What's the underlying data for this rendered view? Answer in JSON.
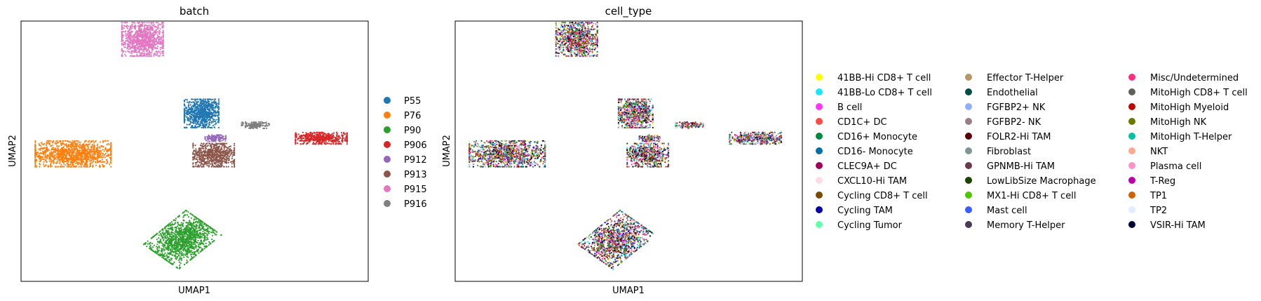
{
  "chart_data": [
    {
      "type": "scatter",
      "title": "batch",
      "xlabel": "UMAP1",
      "ylabel": "UMAP2",
      "grid": false,
      "legend_placement": "right",
      "xlim": [
        -10,
        10
      ],
      "ylim": [
        -10,
        10
      ],
      "series": [
        {
          "name": "P55",
          "color": "#1f77b4",
          "cluster": {
            "center": [
              0.4,
              2.9
            ],
            "spread": [
              1.0,
              1.1
            ],
            "shape": "blob",
            "count": 800
          }
        },
        {
          "name": "P76",
          "color": "#ff7f0e",
          "cluster": {
            "center": [
              -7.0,
              -0.2
            ],
            "spread": [
              2.2,
              1.0
            ],
            "shape": "blob",
            "count": 1200
          }
        },
        {
          "name": "P90",
          "color": "#2ca02c",
          "cluster": {
            "center": [
              -0.7,
              -6.8
            ],
            "spread": [
              1.4,
              1.8
            ],
            "shape": "tilted",
            "count": 1300
          }
        },
        {
          "name": "P906",
          "color": "#d62728",
          "cluster": {
            "center": [
              7.3,
              1.0
            ],
            "spread": [
              1.5,
              0.45
            ],
            "shape": "blob",
            "count": 500
          }
        },
        {
          "name": "P912",
          "color": "#9467bd",
          "cluster": {
            "center": [
              1.2,
              1.0
            ],
            "spread": [
              0.6,
              0.25
            ],
            "shape": "blob",
            "count": 120
          }
        },
        {
          "name": "P913",
          "color": "#8c564b",
          "cluster": {
            "center": [
              1.1,
              -0.3
            ],
            "spread": [
              1.2,
              0.9
            ],
            "shape": "blob",
            "count": 700
          }
        },
        {
          "name": "P915",
          "color": "#e377c2",
          "cluster": {
            "center": [
              -3.0,
              8.6
            ],
            "spread": [
              1.2,
              1.3
            ],
            "shape": "blob",
            "count": 1000
          }
        },
        {
          "name": "P916",
          "color": "#7f7f7f",
          "cluster": {
            "center": [
              3.5,
              2.0
            ],
            "spread": [
              0.8,
              0.25
            ],
            "shape": "blob",
            "count": 150
          }
        }
      ]
    },
    {
      "type": "scatter",
      "title": "cell_type",
      "xlabel": "UMAP1",
      "ylabel": "UMAP2",
      "grid": false,
      "legend_placement": "right",
      "xlim": [
        -10,
        10
      ],
      "ylim": [
        -10,
        10
      ],
      "series": [
        {
          "name": "41BB-Hi CD8+ T cell",
          "color": "#ffff00"
        },
        {
          "name": "41BB-Lo CD8+ T cell",
          "color": "#1ce6ff"
        },
        {
          "name": "B cell",
          "color": "#ff34ff"
        },
        {
          "name": "CD1C+ DC",
          "color": "#ff4a46"
        },
        {
          "name": "CD16+ Monocyte",
          "color": "#008941"
        },
        {
          "name": "CD16- Monocyte",
          "color": "#006fa6"
        },
        {
          "name": "CLEC9A+ DC",
          "color": "#a30059"
        },
        {
          "name": "CXCL10-Hi TAM",
          "color": "#ffdbe5"
        },
        {
          "name": "Cycling CD8+ T cell",
          "color": "#7a4900"
        },
        {
          "name": "Cycling TAM",
          "color": "#0000a6"
        },
        {
          "name": "Cycling Tumor",
          "color": "#63ffac"
        },
        {
          "name": "Effector T-Helper",
          "color": "#b79762"
        },
        {
          "name": "Endothelial",
          "color": "#004d43"
        },
        {
          "name": "FGFBP2+ NK",
          "color": "#8fb0ff"
        },
        {
          "name": "FGFBP2- NK",
          "color": "#997d87"
        },
        {
          "name": "FOLR2-Hi TAM",
          "color": "#5a0007"
        },
        {
          "name": "Fibroblast",
          "color": "#809693"
        },
        {
          "name": "GPNMB-Hi TAM",
          "color": "#6a3a4c"
        },
        {
          "name": "LowLibSize Macrophage",
          "color": "#1b4400"
        },
        {
          "name": "MX1-Hi CD8+ T cell",
          "color": "#4fc601"
        },
        {
          "name": "Mast cell",
          "color": "#3b5dff"
        },
        {
          "name": "Memory T-Helper",
          "color": "#4a3b53"
        },
        {
          "name": "Misc/Undetermined",
          "color": "#ff2f80"
        },
        {
          "name": "MitoHigh CD8+ T cell",
          "color": "#61615a"
        },
        {
          "name": "MitoHigh Myeloid",
          "color": "#ba0900"
        },
        {
          "name": "MitoHigh NK",
          "color": "#6b7900"
        },
        {
          "name": "MitoHigh T-Helper",
          "color": "#00c2a0"
        },
        {
          "name": "NKT",
          "color": "#ffaa92"
        },
        {
          "name": "Plasma cell",
          "color": "#ff90c9"
        },
        {
          "name": "T-Reg",
          "color": "#b903aa"
        },
        {
          "name": "TP1",
          "color": "#d16100"
        },
        {
          "name": "TP2",
          "color": "#ddefff"
        },
        {
          "name": "VSIR-Hi TAM",
          "color": "#000035"
        }
      ]
    }
  ]
}
